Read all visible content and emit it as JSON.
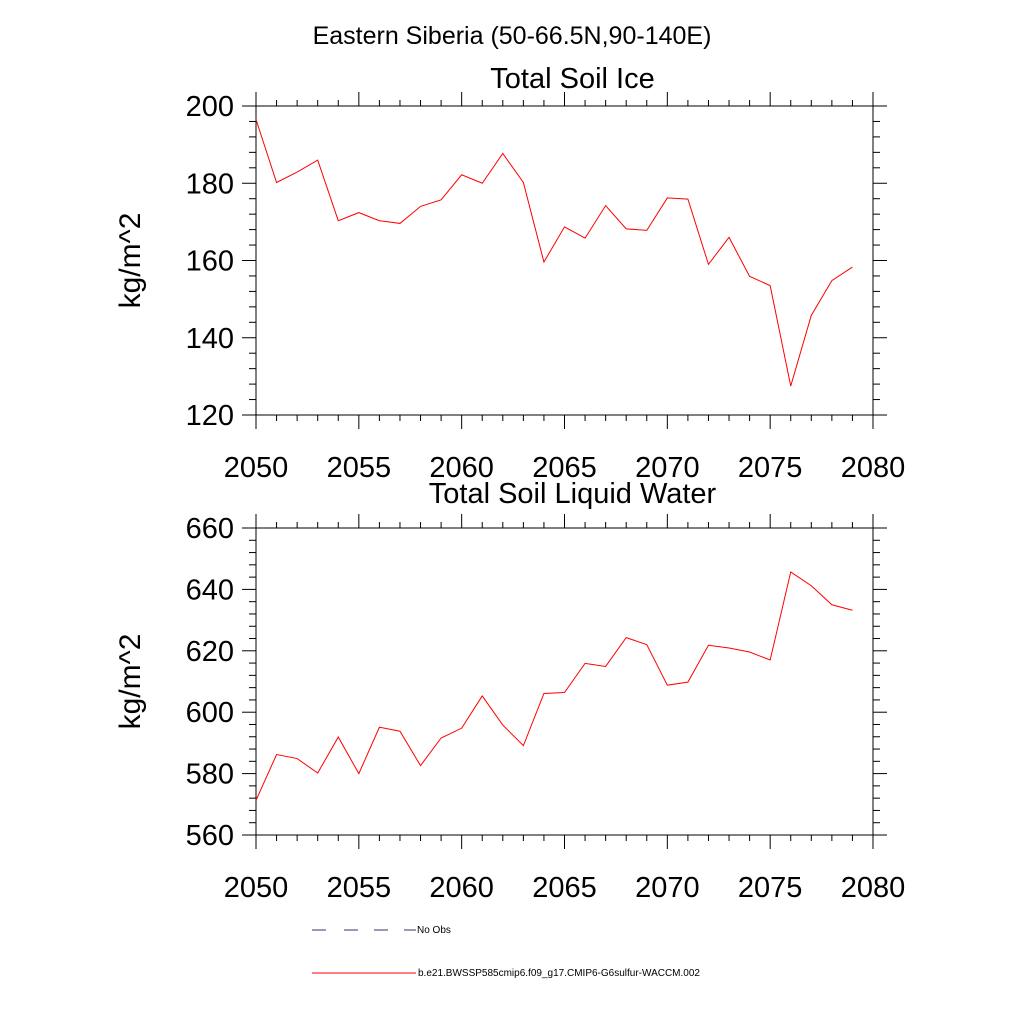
{
  "figure": {
    "title": "Eastern Siberia (50-66.5N,90-140E)"
  },
  "chart_data": [
    {
      "type": "line",
      "title": "Total Soil Ice",
      "ylabel": "kg/m^2",
      "xlabel": "",
      "xlim": [
        2050,
        2080
      ],
      "ylim": [
        120,
        200
      ],
      "xticks": [
        "2050",
        "2055",
        "2060",
        "2065",
        "2070",
        "2075",
        "2080"
      ],
      "yticks": [
        "120",
        "140",
        "160",
        "180",
        "200"
      ],
      "grid": false,
      "series": [
        {
          "name": "b.e21.BWSSP585cmip6.f09_g17.CMIP6-G6sulfur-WACCM.002",
          "color": "#ff0000",
          "x": [
            2050,
            2051,
            2052,
            2053,
            2054,
            2055,
            2056,
            2057,
            2058,
            2059,
            2060,
            2061,
            2062,
            2063,
            2064,
            2065,
            2066,
            2067,
            2068,
            2069,
            2070,
            2071,
            2072,
            2073,
            2074,
            2075,
            2076,
            2077,
            2078,
            2079
          ],
          "values": [
            196.5,
            180.2,
            182.9,
            186.0,
            170.3,
            172.4,
            170.3,
            169.6,
            174.0,
            175.7,
            182.2,
            180.0,
            187.7,
            180.2,
            159.6,
            168.7,
            165.8,
            174.2,
            168.2,
            167.8,
            176.2,
            175.9,
            159.0,
            166.0,
            155.9,
            153.5,
            127.5,
            145.8,
            154.8,
            158.3
          ]
        }
      ]
    },
    {
      "type": "line",
      "title": "Total Soil Liquid Water",
      "ylabel": "kg/m^2",
      "xlabel": "",
      "xlim": [
        2050,
        2080
      ],
      "ylim": [
        560,
        660
      ],
      "xticks": [
        "2050",
        "2055",
        "2060",
        "2065",
        "2070",
        "2075",
        "2080"
      ],
      "yticks": [
        "560",
        "580",
        "600",
        "620",
        "640",
        "660"
      ],
      "grid": false,
      "series": [
        {
          "name": "b.e21.BWSSP585cmip6.f09_g17.CMIP6-G6sulfur-WACCM.002",
          "color": "#ff0000",
          "x": [
            2050,
            2051,
            2052,
            2053,
            2054,
            2055,
            2056,
            2057,
            2058,
            2059,
            2060,
            2061,
            2062,
            2063,
            2064,
            2065,
            2066,
            2067,
            2068,
            2069,
            2070,
            2071,
            2072,
            2073,
            2074,
            2075,
            2076,
            2077,
            2078,
            2079
          ],
          "values": [
            571.3,
            586.2,
            584.9,
            580.2,
            591.9,
            580.0,
            595.1,
            593.8,
            582.6,
            591.6,
            594.8,
            605.3,
            595.8,
            589.1,
            606.1,
            606.4,
            615.9,
            614.9,
            624.3,
            622.0,
            608.8,
            609.8,
            621.8,
            620.9,
            619.6,
            617.0,
            645.7,
            641.2,
            635.0,
            633.2
          ]
        }
      ]
    }
  ],
  "legend": {
    "placement": "bottom-center",
    "entries": [
      {
        "label": "No Obs",
        "style": "dashed",
        "color": "#333366"
      },
      {
        "label": "b.e21.BWSSP585cmip6.f09_g17.CMIP6-G6sulfur-WACCM.002",
        "style": "solid",
        "color": "#ff0000"
      }
    ]
  }
}
